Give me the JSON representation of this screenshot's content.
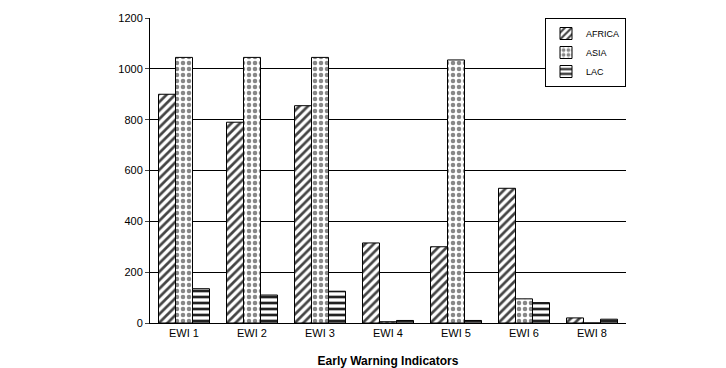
{
  "chart_data": {
    "type": "bar",
    "x_label": "Early Warning Indicators",
    "categories": [
      "EWI 1",
      "EWI 2",
      "EWI 3",
      "EWI 4",
      "EWI 5",
      "EWI 6",
      "EWI 8"
    ],
    "series": [
      {
        "name": "AFRICA",
        "color": "#444444",
        "values": [
          900,
          790,
          855,
          315,
          300,
          530,
          20
        ]
      },
      {
        "name": "ASIA",
        "color": "#888888",
        "values": [
          1045,
          1045,
          1045,
          5,
          1035,
          95,
          0
        ]
      },
      {
        "name": "LAC",
        "color": "#222222",
        "values": [
          135,
          110,
          125,
          10,
          10,
          80,
          15
        ]
      }
    ],
    "ylim": [
      0,
      1200
    ],
    "yticks": [
      0,
      200,
      400,
      600,
      800,
      1000,
      1200
    ],
    "grid": true,
    "legend": "top right"
  }
}
